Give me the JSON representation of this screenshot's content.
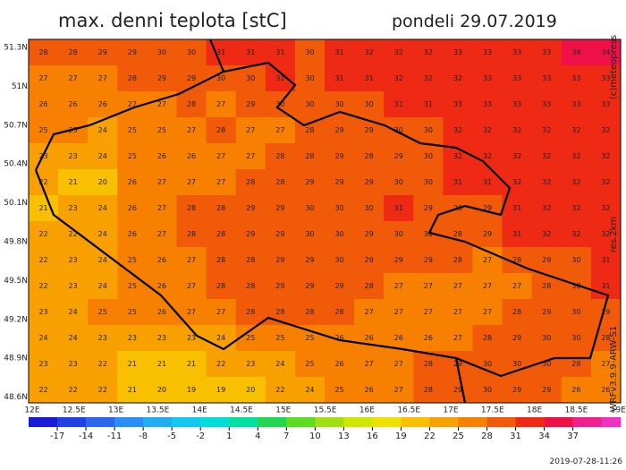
{
  "header": {
    "title": "max. denni teplota [stC]",
    "date": "pondeli 29.07.2019"
  },
  "map": {
    "lat_labels": [
      "51.3N",
      "51N",
      "50.7N",
      "50.4N",
      "50.1N",
      "49.8N",
      "49.5N",
      "49.2N",
      "48.9N",
      "48.6N"
    ],
    "lon_labels": [
      "12E",
      "12.5E",
      "13E",
      "13.5E",
      "14E",
      "14.5E",
      "15E",
      "15.5E",
      "16E",
      "16.5E",
      "17E",
      "17.5E",
      "18E",
      "18.5E",
      "19E"
    ],
    "grid": [
      [
        28,
        28,
        29,
        29,
        30,
        30,
        31,
        31,
        31,
        30,
        31,
        32,
        32,
        32,
        33,
        33,
        33,
        33,
        34,
        34
      ],
      [
        27,
        27,
        27,
        28,
        29,
        29,
        30,
        30,
        31,
        30,
        31,
        31,
        32,
        32,
        32,
        33,
        33,
        33,
        33,
        33
      ],
      [
        26,
        26,
        26,
        27,
        27,
        28,
        27,
        29,
        30,
        30,
        30,
        30,
        31,
        31,
        33,
        33,
        33,
        33,
        33,
        33
      ],
      [
        25,
        25,
        24,
        25,
        25,
        27,
        28,
        27,
        27,
        28,
        29,
        29,
        30,
        30,
        32,
        32,
        32,
        32,
        32,
        32
      ],
      [
        23,
        23,
        24,
        25,
        26,
        26,
        27,
        27,
        28,
        28,
        29,
        28,
        29,
        30,
        32,
        32,
        32,
        32,
        32,
        32
      ],
      [
        22,
        21,
        20,
        26,
        27,
        27,
        27,
        28,
        28,
        29,
        29,
        29,
        30,
        30,
        31,
        31,
        32,
        32,
        32,
        32
      ],
      [
        21,
        23,
        24,
        26,
        27,
        28,
        28,
        29,
        29,
        30,
        30,
        30,
        31,
        29,
        28,
        29,
        31,
        32,
        32,
        32
      ],
      [
        22,
        22,
        24,
        26,
        27,
        28,
        28,
        29,
        29,
        30,
        30,
        29,
        30,
        30,
        28,
        29,
        31,
        32,
        32,
        32
      ],
      [
        22,
        23,
        24,
        25,
        26,
        27,
        28,
        28,
        29,
        29,
        30,
        29,
        29,
        29,
        28,
        27,
        28,
        29,
        30,
        31
      ],
      [
        22,
        23,
        24,
        25,
        26,
        27,
        28,
        28,
        29,
        29,
        29,
        28,
        27,
        27,
        27,
        27,
        27,
        28,
        30,
        31
      ],
      [
        23,
        24,
        25,
        25,
        26,
        27,
        27,
        28,
        28,
        28,
        28,
        27,
        27,
        27,
        27,
        27,
        28,
        29,
        30,
        29
      ],
      [
        24,
        24,
        23,
        23,
        23,
        23,
        24,
        25,
        25,
        25,
        26,
        26,
        26,
        26,
        27,
        28,
        29,
        30,
        30,
        28
      ],
      [
        23,
        23,
        22,
        21,
        21,
        21,
        22,
        23,
        24,
        25,
        26,
        27,
        27,
        28,
        29,
        30,
        30,
        30,
        28,
        27
      ],
      [
        22,
        22,
        22,
        21,
        20,
        19,
        19,
        20,
        22,
        24,
        25,
        26,
        27,
        28,
        29,
        30,
        29,
        29,
        26,
        26
      ]
    ]
  },
  "colorbar": {
    "lim": [
      -20,
      42
    ],
    "step": 3,
    "ticks": [
      -17,
      -14,
      -11,
      -8,
      -5,
      -2,
      1,
      4,
      7,
      10,
      13,
      16,
      19,
      22,
      25,
      28,
      31,
      34,
      37
    ],
    "colors": [
      "#1a1adc",
      "#2040e8",
      "#2a66f0",
      "#2a8cf5",
      "#20aef5",
      "#10c8f0",
      "#00dcd8",
      "#00e0a0",
      "#20d850",
      "#60dc20",
      "#a0e010",
      "#d0e800",
      "#f0e000",
      "#f8c000",
      "#f8a000",
      "#f88000",
      "#f05a08",
      "#ee2a14",
      "#f01048",
      "#f02090",
      "#f030c0"
    ]
  },
  "credits": {
    "copyright": "(c)meteopress",
    "resolution": "res.2km",
    "model": "WRFv3.9.9-ARW-S1",
    "run": "2019-07-28-11:26"
  }
}
